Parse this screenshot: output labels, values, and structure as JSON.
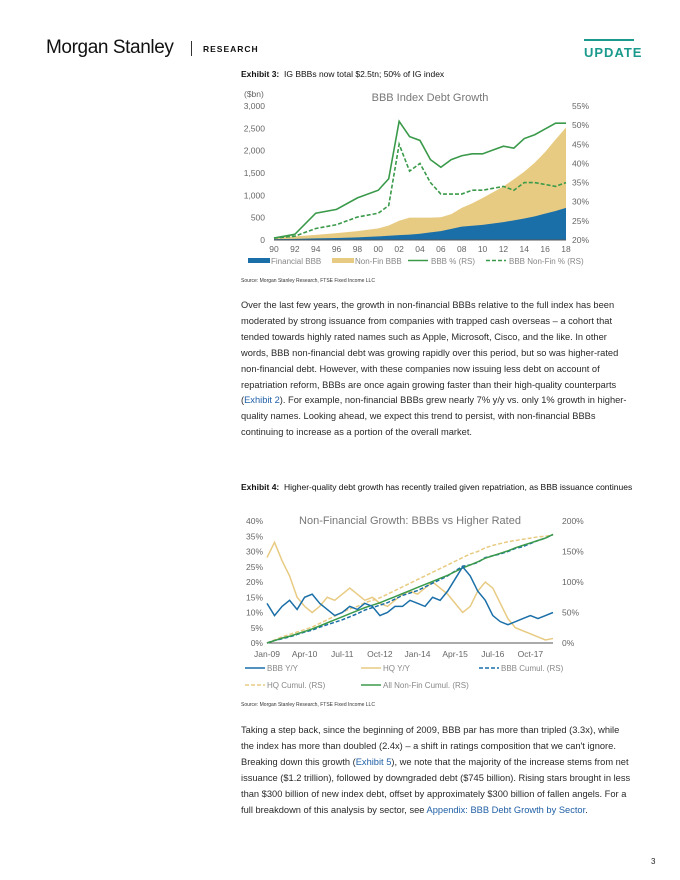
{
  "header": {
    "logo": "Morgan Stanley",
    "section": "RESEARCH",
    "badge": "UPDATE"
  },
  "exhibit3": {
    "label": "Exhibit 3:",
    "caption": "IG BBBs now total $2.5tn; 50% of IG index",
    "source": "Source: Morgan Stanley Research, FTSE Fixed Income LLC"
  },
  "exhibit4": {
    "label": "Exhibit 4:",
    "caption": "Higher-quality debt growth has recently trailed given repatriation, as BBB issuance continues",
    "source": "Source: Morgan Stanley Research, FTSE Fixed Income LLC"
  },
  "para1": {
    "t1": "Over the last few years, the growth in non-financial BBBs relative to the full index has been moderated by strong issuance from companies with trapped cash overseas – a cohort that tended towards highly rated names such as Apple, Microsoft, Cisco, and the like. In other words, BBB non-financial debt was growing rapidly over this period, but so was higher-rated non-financial debt. However, with these companies now issuing less debt on account of repatriation reform, BBBs are once again growing faster than their high-quality counterparts (",
    "link": "Exhibit 2",
    "t2": "). For example, non-financial BBBs grew nearly 7% y/y vs. only 1% growth in higher-quality names. Looking ahead, we expect this trend to persist, with non-financial BBBs continuing to increase as a portion of the overall market."
  },
  "para2": {
    "t1": "Taking a step back, since the beginning of 2009, BBB par has more than tripled (3.3x), while the index has more than doubled (2.4x) – a shift in ratings composition that we can't ignore. Breaking down this growth (",
    "link1": "Exhibit 5",
    "t2": "), we note that the majority of the increase stems from net issuance ($1.2 trillion), followed by downgraded debt ($745 billion). Rising stars brought in less than $300 billion of new index debt, offset by approximately $300 billion of fallen angels. For a full breakdown of this analysis by sector, see ",
    "link2": "Appendix: BBB Debt Growth by Sector",
    "t3": "."
  },
  "page_number": "3",
  "chart_data": [
    {
      "type": "area",
      "title": "BBB Index Debt Growth",
      "ylabel": "($bn)",
      "xlabel": "",
      "x_ticks": [
        "90",
        "92",
        "94",
        "96",
        "98",
        "00",
        "02",
        "04",
        "06",
        "08",
        "10",
        "12",
        "14",
        "16",
        "18"
      ],
      "x": [
        1990,
        1992,
        1994,
        1996,
        1998,
        2000,
        2001,
        2002,
        2003,
        2004,
        2005,
        2006,
        2007,
        2008,
        2009,
        2010,
        2011,
        2012,
        2013,
        2014,
        2015,
        2016,
        2017,
        2018
      ],
      "ylim": [
        0,
        3000
      ],
      "yticks": [
        0,
        500,
        1000,
        1500,
        2000,
        2500,
        3000
      ],
      "ylim_right": [
        20,
        55
      ],
      "yticks_right": [
        "20%",
        "25%",
        "30%",
        "35%",
        "40%",
        "45%",
        "50%",
        "55%"
      ],
      "colors": {
        "financial": "#1a6fa8",
        "nonfin": "#e8cb82",
        "pct": "#3a9a4a"
      },
      "series": [
        {
          "name": "Financial BBB",
          "axis": "left",
          "style": "area",
          "values": [
            20,
            25,
            35,
            45,
            60,
            80,
            95,
            110,
            120,
            140,
            170,
            200,
            250,
            300,
            320,
            340,
            370,
            400,
            440,
            480,
            530,
            590,
            650,
            720
          ]
        },
        {
          "name": "Non-Fin BBB",
          "axis": "left",
          "style": "area",
          "values": [
            40,
            55,
            80,
            110,
            140,
            180,
            230,
            320,
            380,
            360,
            330,
            310,
            330,
            420,
            500,
            600,
            700,
            800,
            920,
            1050,
            1200,
            1380,
            1600,
            1800
          ]
        },
        {
          "name": "BBB % (RS)",
          "axis": "right",
          "style": "line",
          "values": [
            20.5,
            21.5,
            27,
            28,
            31,
            33,
            36,
            51,
            47,
            46,
            41,
            39,
            41,
            42,
            42.5,
            42.5,
            43.5,
            44.5,
            44,
            46.5,
            47.5,
            49,
            50.5,
            50.5
          ]
        },
        {
          "name": "BBB Non-Fin % (RS)",
          "axis": "right",
          "style": "dashed",
          "values": [
            20.5,
            21,
            23,
            24,
            26,
            27,
            29,
            45,
            38,
            40,
            35,
            32,
            32,
            32,
            33,
            33,
            33.5,
            34,
            33,
            35,
            35,
            34.5,
            34,
            35
          ]
        }
      ],
      "legend_position": "bottom"
    },
    {
      "type": "line",
      "title": "Non-Financial Growth: BBBs vs Higher Rated",
      "x_ticks": [
        "Jan-09",
        "Apr-10",
        "Jul-11",
        "Oct-12",
        "Jan-14",
        "Apr-15",
        "Jul-16",
        "Oct-17"
      ],
      "x": [
        2009.0,
        2009.25,
        2009.5,
        2009.75,
        2010.0,
        2010.25,
        2010.5,
        2010.75,
        2011.0,
        2011.25,
        2011.5,
        2011.75,
        2012.0,
        2012.25,
        2012.5,
        2012.75,
        2013.0,
        2013.25,
        2013.5,
        2013.75,
        2014.0,
        2014.25,
        2014.5,
        2014.75,
        2015.0,
        2015.25,
        2015.5,
        2015.75,
        2016.0,
        2016.25,
        2016.5,
        2016.75,
        2017.0,
        2017.25,
        2017.5,
        2017.75,
        2018.0,
        2018.25,
        2018.5
      ],
      "ylim": [
        0,
        40
      ],
      "yticks": [
        "0%",
        "5%",
        "10%",
        "15%",
        "20%",
        "25%",
        "30%",
        "35%",
        "40%"
      ],
      "ylim_right": [
        0,
        200
      ],
      "yticks_right": [
        "0%",
        "50%",
        "100%",
        "150%",
        "200%"
      ],
      "colors": {
        "bbb": "#1a6fa8",
        "hq": "#e8cb82",
        "total": "#3a9a4a"
      },
      "series": [
        {
          "name": "BBB Y/Y",
          "axis": "left",
          "style": "line",
          "values": [
            13,
            9,
            12,
            14,
            11,
            15,
            16,
            13,
            11,
            9,
            10,
            12,
            11,
            13,
            12,
            9,
            10,
            12,
            12,
            14,
            13,
            12,
            15,
            14,
            17,
            21,
            25,
            22,
            17,
            14,
            9,
            7,
            6,
            7,
            8,
            9,
            8,
            9,
            10
          ]
        },
        {
          "name": "HQ Y/Y",
          "axis": "left",
          "style": "line",
          "values": [
            28,
            33,
            27,
            22,
            15,
            12,
            10,
            12,
            15,
            14,
            16,
            18,
            16,
            14,
            15,
            13,
            12,
            14,
            16,
            17,
            16,
            18,
            20,
            18,
            16,
            13,
            10,
            12,
            17,
            20,
            18,
            13,
            8,
            5,
            4,
            3,
            2,
            1,
            1.5
          ]
        },
        {
          "name": "BBB Cumul. (RS)",
          "axis": "right",
          "style": "dashed",
          "values": [
            0,
            4,
            7,
            10,
            14,
            18,
            21,
            26,
            30,
            34,
            38,
            43,
            48,
            54,
            58,
            62,
            66,
            72,
            78,
            82,
            86,
            92,
            98,
            104,
            110,
            118,
            126,
            128,
            132,
            140,
            143,
            146,
            150,
            155,
            158,
            163,
            168,
            172,
            178
          ]
        },
        {
          "name": "HQ Cumul. (RS)",
          "axis": "right",
          "style": "dashed",
          "values": [
            0,
            5,
            10,
            14,
            18,
            22,
            26,
            32,
            38,
            44,
            50,
            56,
            60,
            66,
            70,
            74,
            80,
            86,
            92,
            98,
            104,
            110,
            116,
            122,
            128,
            134,
            140,
            146,
            150,
            156,
            160,
            163,
            166,
            168,
            170,
            172,
            174,
            175,
            177
          ]
        },
        {
          "name": "All Non-Fin Cumul. (RS)",
          "axis": "right",
          "style": "line",
          "values": [
            0,
            4,
            8,
            11,
            15,
            19,
            23,
            28,
            33,
            38,
            43,
            48,
            53,
            58,
            62,
            66,
            71,
            76,
            81,
            86,
            91,
            96,
            101,
            106,
            111,
            117,
            123,
            128,
            133,
            139,
            143,
            147,
            151,
            156,
            160,
            164,
            168,
            172,
            178
          ]
        }
      ],
      "legend_position": "bottom"
    }
  ]
}
